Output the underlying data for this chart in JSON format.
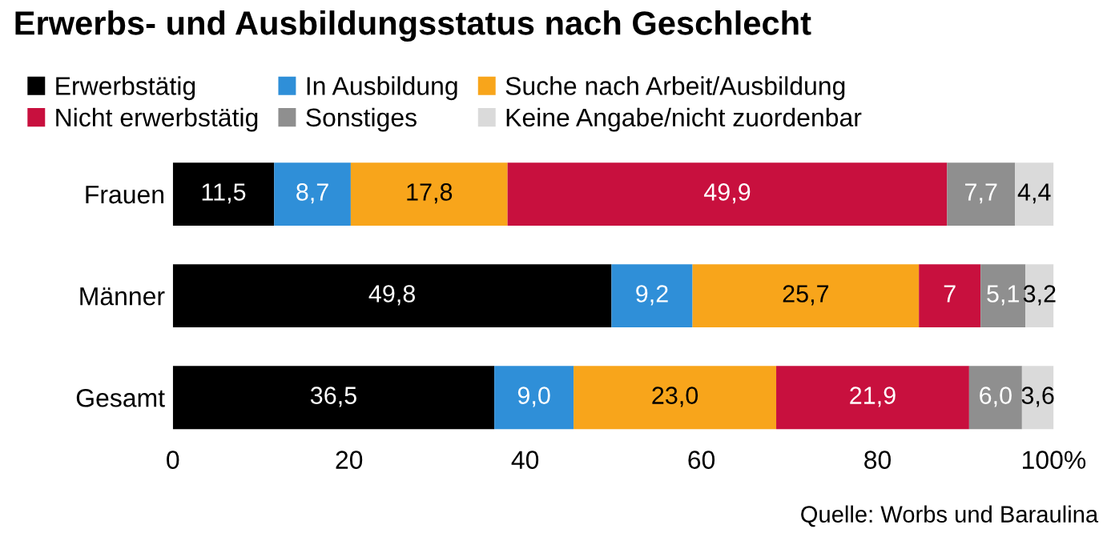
{
  "chart_data": {
    "type": "bar",
    "orientation": "horizontal",
    "stacked": true,
    "title": "Erwerbs- und Ausbildungsstatus nach Geschlecht",
    "categories": [
      "Frauen",
      "Männer",
      "Gesamt"
    ],
    "series": [
      {
        "name": "Erwerbstätig",
        "color": "#000000",
        "values": [
          11.5,
          49.8,
          36.5
        ],
        "value_labels": [
          "11,5",
          "49,8",
          "36,5"
        ]
      },
      {
        "name": "In Ausbildung",
        "color": "#2f8fd8",
        "values": [
          8.7,
          9.2,
          9.0
        ],
        "value_labels": [
          "8,7",
          "9,2",
          "9,0"
        ]
      },
      {
        "name": "Suche nach Arbeit/Ausbildung",
        "color": "#f8a51b",
        "values": [
          17.8,
          25.7,
          23.0
        ],
        "value_labels": [
          "17,8",
          "25,7",
          "23,0"
        ]
      },
      {
        "name": "Nicht erwerbstätig",
        "color": "#c8103e",
        "values": [
          49.9,
          7,
          21.9
        ],
        "value_labels": [
          "49,9",
          "7",
          "21,9"
        ]
      },
      {
        "name": "Sonstiges",
        "color": "#8f8f8f",
        "values": [
          7.7,
          5.1,
          6.0
        ],
        "value_labels": [
          "7,7",
          "5,1",
          "6,0"
        ]
      },
      {
        "name": "Keine Angabe/nicht zuordenbar",
        "color": "#dadada",
        "values": [
          4.4,
          3.2,
          3.6
        ],
        "value_labels": [
          "4,4",
          "3,2",
          "3,6"
        ]
      }
    ],
    "xlim": [
      0,
      100
    ],
    "xticks": [
      0,
      20,
      40,
      60,
      80,
      {
        "value": 100,
        "label": "100%"
      }
    ],
    "grid": false,
    "legend": "top",
    "annotations": [
      "Quelle: Worbs und Baraulina"
    ]
  }
}
